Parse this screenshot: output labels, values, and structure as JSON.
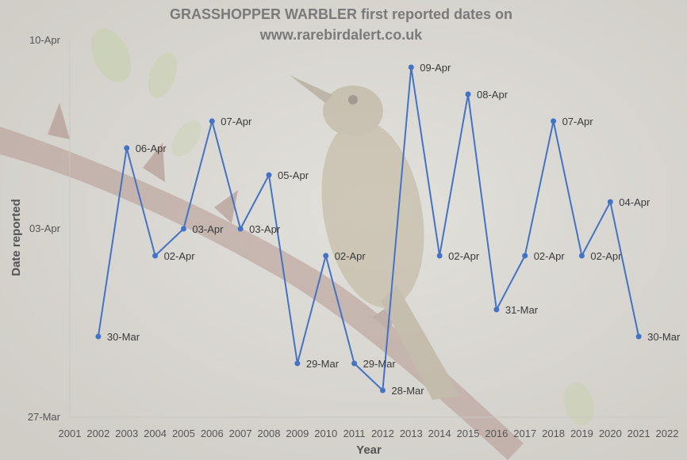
{
  "colors": {
    "line": "#4472C4",
    "background": "#d7d5d0",
    "plot_area": "#dcdad5",
    "title": "#7a7a7a",
    "text": "#555555"
  },
  "chart_data": {
    "type": "line",
    "title_lines": [
      "GRASSHOPPER WARBLER first reported dates on",
      "www.rarebirdalert.co.uk"
    ],
    "xlabel": "Year",
    "ylabel": "Date reported",
    "x_ticks": [
      "2001",
      "2002",
      "2003",
      "2004",
      "2005",
      "2006",
      "2007",
      "2008",
      "2009",
      "2010",
      "2011",
      "2012",
      "2013",
      "2014",
      "2015",
      "2016",
      "2017",
      "2018",
      "2019",
      "2020",
      "2021",
      "2022"
    ],
    "y_ticks": [
      "27-Mar",
      "03-Apr",
      "10-Apr"
    ],
    "ylim": [
      "27-Mar",
      "10-Apr"
    ],
    "xlim": [
      2001,
      2022
    ],
    "grid": false,
    "legend": "none",
    "series": [
      {
        "points": [
          {
            "x": 2002,
            "y": "30-Mar"
          },
          {
            "x": 2003,
            "y": "06-Apr"
          },
          {
            "x": 2004,
            "y": "02-Apr"
          },
          {
            "x": 2005,
            "y": "03-Apr"
          },
          {
            "x": 2006,
            "y": "07-Apr"
          },
          {
            "x": 2007,
            "y": "03-Apr"
          },
          {
            "x": 2008,
            "y": "05-Apr"
          },
          {
            "x": 2009,
            "y": "29-Mar"
          },
          {
            "x": 2010,
            "y": "02-Apr"
          },
          {
            "x": 2011,
            "y": "29-Mar"
          },
          {
            "x": 2012,
            "y": "28-Mar"
          },
          {
            "x": 2013,
            "y": "09-Apr"
          },
          {
            "x": 2014,
            "y": "02-Apr"
          },
          {
            "x": 2015,
            "y": "08-Apr"
          },
          {
            "x": 2016,
            "y": "31-Mar"
          },
          {
            "x": 2017,
            "y": "02-Apr"
          },
          {
            "x": 2018,
            "y": "07-Apr"
          },
          {
            "x": 2019,
            "y": "02-Apr"
          },
          {
            "x": 2020,
            "y": "04-Apr"
          },
          {
            "x": 2021,
            "y": "30-Mar"
          }
        ]
      }
    ]
  }
}
